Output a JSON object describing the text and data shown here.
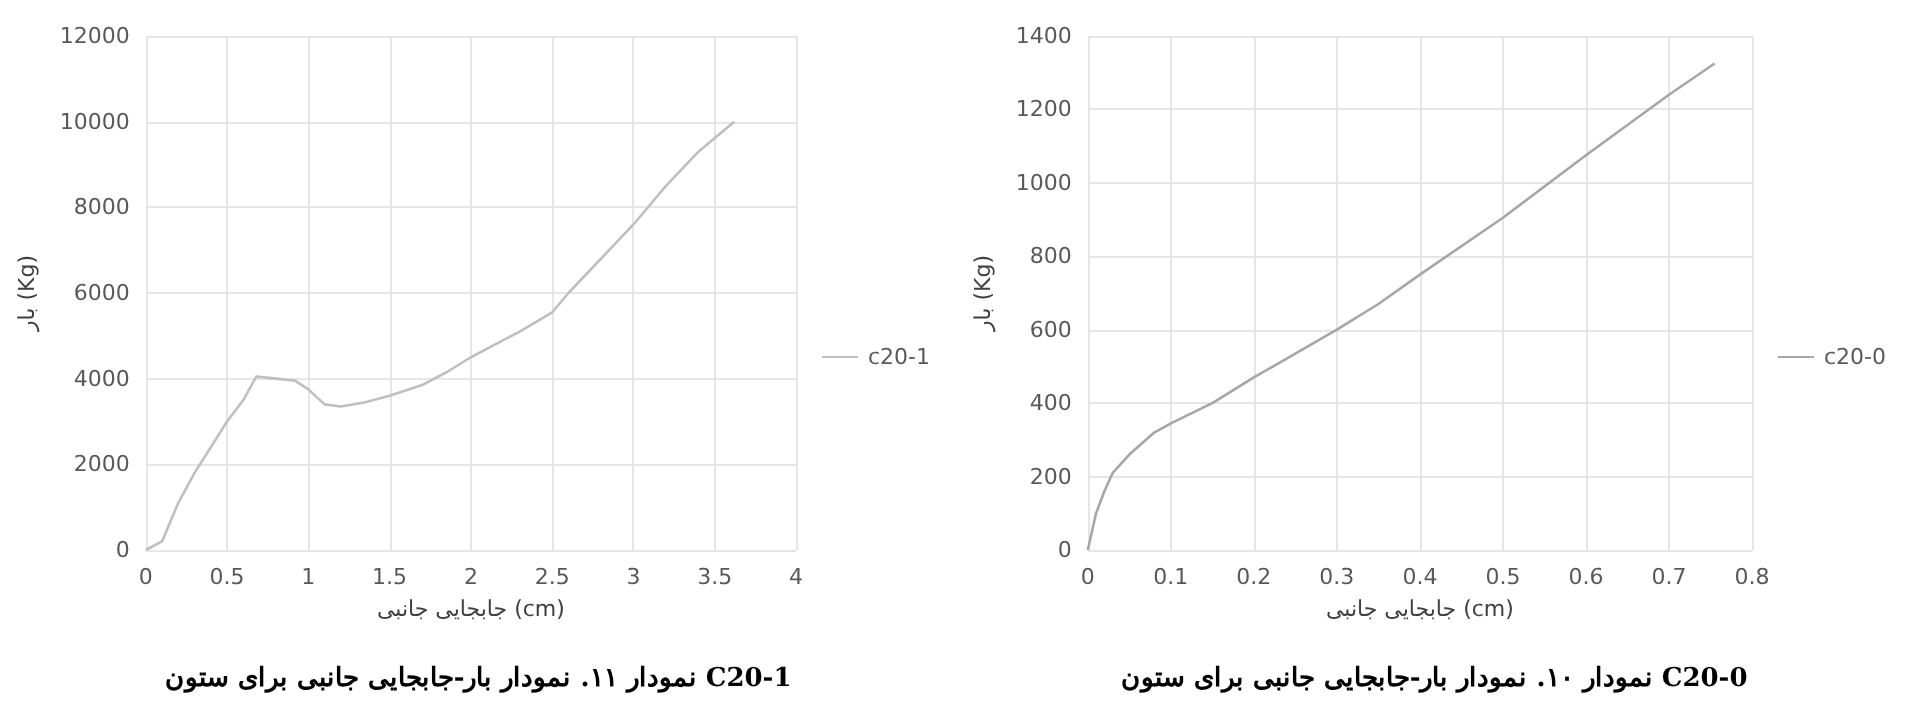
{
  "chart_data": [
    {
      "type": "line",
      "title": "نمودار ۱۱. نمودار بار-جابجایی جانبی برای ستون C20-1",
      "xlabel": "جابجایی جانبی (cm)",
      "ylabel": "بار (Kg)",
      "xlim": [
        0,
        4
      ],
      "xticks": [
        0,
        0.5,
        1,
        1.5,
        2,
        2.5,
        3,
        3.5,
        4
      ],
      "ylim": [
        0,
        12000
      ],
      "yticks": [
        0,
        2000,
        4000,
        6000,
        8000,
        10000,
        12000
      ],
      "grid": true,
      "legend": "right",
      "marker": "none",
      "series": [
        {
          "name": "c20-1",
          "color": "#bfbfbf",
          "x": [
            0,
            0.1,
            0.2,
            0.3,
            0.4,
            0.5,
            0.6,
            0.68,
            0.8,
            0.92,
            1.0,
            1.1,
            1.2,
            1.35,
            1.5,
            1.7,
            1.85,
            2.0,
            2.15,
            2.3,
            2.5,
            2.6,
            2.8,
            3.0,
            3.2,
            3.4,
            3.62
          ],
          "values": [
            0,
            200,
            1100,
            1800,
            2400,
            3000,
            3500,
            4050,
            4000,
            3950,
            3750,
            3400,
            3350,
            3450,
            3600,
            3850,
            4150,
            4500,
            4800,
            5100,
            5550,
            6000,
            6800,
            7600,
            8500,
            9300,
            10000
          ]
        }
      ]
    },
    {
      "type": "line",
      "title": "نمودار ۱۰. نمودار بار-جابجایی جانبی برای ستون C20-0",
      "xlabel": "جابجایی جانبی (cm)",
      "ylabel": "بار (Kg)",
      "xlim": [
        0,
        0.8
      ],
      "xticks": [
        0,
        0.1,
        0.2,
        0.3,
        0.4,
        0.5,
        0.6,
        0.7,
        0.8
      ],
      "ylim": [
        0,
        1400
      ],
      "yticks": [
        0,
        200,
        400,
        600,
        800,
        1000,
        1200,
        1400
      ],
      "grid": true,
      "legend": "right",
      "marker": "none",
      "series": [
        {
          "name": "c20-0",
          "color": "#a6a6a6",
          "x": [
            0,
            0.01,
            0.02,
            0.03,
            0.05,
            0.08,
            0.1,
            0.15,
            0.2,
            0.3,
            0.35,
            0.4,
            0.5,
            0.6,
            0.7,
            0.755
          ],
          "values": [
            0,
            100,
            160,
            210,
            260,
            320,
            345,
            400,
            470,
            600,
            670,
            750,
            905,
            1075,
            1240,
            1325
          ]
        }
      ]
    }
  ]
}
